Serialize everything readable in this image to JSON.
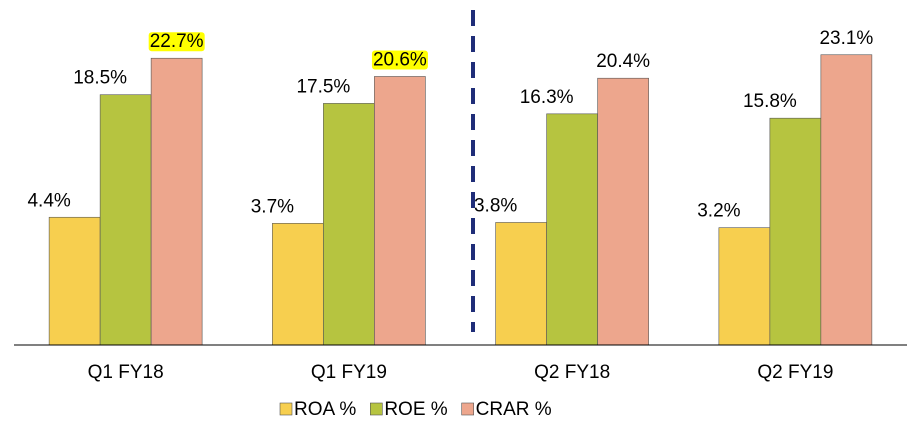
{
  "chart_data": {
    "type": "bar",
    "categories": [
      "Q1 FY18",
      "Q1 FY19",
      "Q2 FY18",
      "Q2 FY19"
    ],
    "series": [
      {
        "name": "ROA %",
        "color": "#f7cf4f",
        "values": [
          4.4,
          3.7,
          3.8,
          3.2
        ],
        "value_labels": [
          "4.4%",
          "3.7%",
          "3.8%",
          "3.2%"
        ]
      },
      {
        "name": "ROE %",
        "color": "#b6c440",
        "values": [
          18.5,
          17.5,
          16.3,
          15.8
        ],
        "value_labels": [
          "18.5%",
          "17.5%",
          "16.3%",
          "15.8%"
        ]
      },
      {
        "name": "CRAR %",
        "color": "#eda68d",
        "values": [
          22.7,
          20.6,
          20.4,
          23.1
        ],
        "value_labels": [
          "22.7%",
          "20.6%",
          "20.4%",
          "23.1%"
        ],
        "highlight": [
          true,
          true,
          false,
          false
        ],
        "highlight_color": "#ffff00"
      }
    ],
    "ylim": [
      -10.3,
      29.4
    ],
    "legend": "bottom"
  }
}
